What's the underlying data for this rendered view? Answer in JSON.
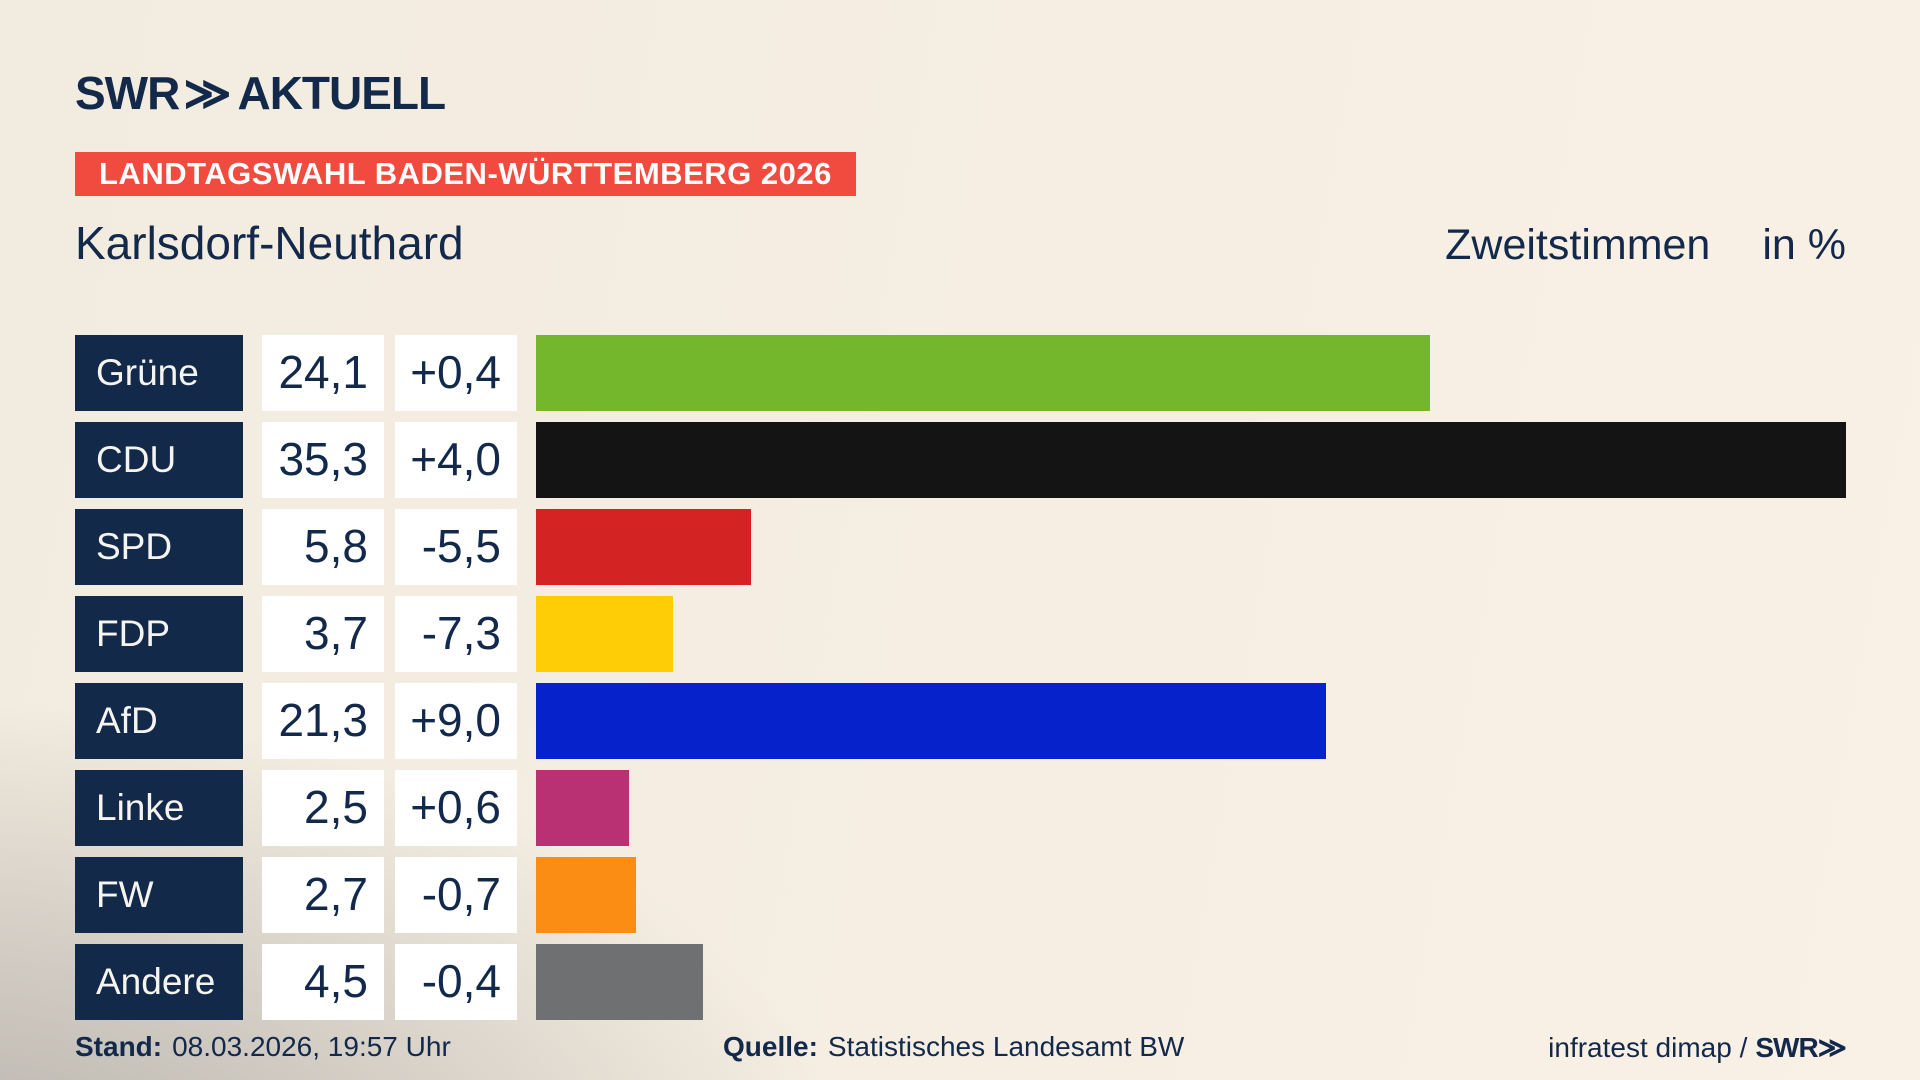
{
  "header": {
    "logo_swr": "SWR",
    "logo_chevron": "≫",
    "logo_aktuell": "AKTUELL",
    "banner": "LANDTAGSWAHL BADEN-WÜRTTEMBERG 2026"
  },
  "title": {
    "region": "Karlsdorf-Neuthard",
    "measure": "Zweitstimmen",
    "unit": "in %"
  },
  "chart_data": {
    "type": "bar",
    "orientation": "horizontal",
    "title": "Karlsdorf-Neuthard – Zweitstimmen in %",
    "xlim": [
      0,
      35.3
    ],
    "grid": false,
    "legend": false,
    "categories": [
      "Grüne",
      "CDU",
      "SPD",
      "FDP",
      "AfD",
      "Linke",
      "FW",
      "Andere"
    ],
    "values": [
      24.1,
      35.3,
      5.8,
      3.7,
      21.3,
      2.5,
      2.7,
      4.5
    ],
    "changes": [
      0.4,
      4.0,
      -5.5,
      -7.3,
      9.0,
      0.6,
      -0.7,
      -0.4
    ],
    "rows": [
      {
        "party": "Grüne",
        "value": 24.1,
        "value_label": "24,1",
        "change_label": "+0,4",
        "color": "#74b62c"
      },
      {
        "party": "CDU",
        "value": 35.3,
        "value_label": "35,3",
        "change_label": "+4,0",
        "color": "#141414"
      },
      {
        "party": "SPD",
        "value": 5.8,
        "value_label": "5,8",
        "change_label": "-5,5",
        "color": "#d32322"
      },
      {
        "party": "FDP",
        "value": 3.7,
        "value_label": "3,7",
        "change_label": "-7,3",
        "color": "#ffcd05"
      },
      {
        "party": "AfD",
        "value": 21.3,
        "value_label": "21,3",
        "change_label": "+9,0",
        "color": "#0522cb"
      },
      {
        "party": "Linke",
        "value": 2.5,
        "value_label": "2,5",
        "change_label": "+0,6",
        "color": "#ba3173"
      },
      {
        "party": "FW",
        "value": 2.7,
        "value_label": "2,7",
        "change_label": "-0,7",
        "color": "#fb8d14"
      },
      {
        "party": "Andere",
        "value": 4.5,
        "value_label": "4,5",
        "change_label": "-0,4",
        "color": "#6e7072"
      }
    ]
  },
  "footer": {
    "stand_label": "Stand:",
    "stand_value": "08.03.2026, 19:57 Uhr",
    "quelle_label": "Quelle:",
    "quelle_value": "Statistisches Landesamt BW",
    "credit_text": "infratest dimap /",
    "credit_logo": "SWR≫"
  },
  "theme": {
    "navy": "#12294a",
    "banner_red": "#f04b3e",
    "box_white": "#ffffff",
    "background_cream": "#f6eee2",
    "background_gray": "#a6a39e"
  }
}
